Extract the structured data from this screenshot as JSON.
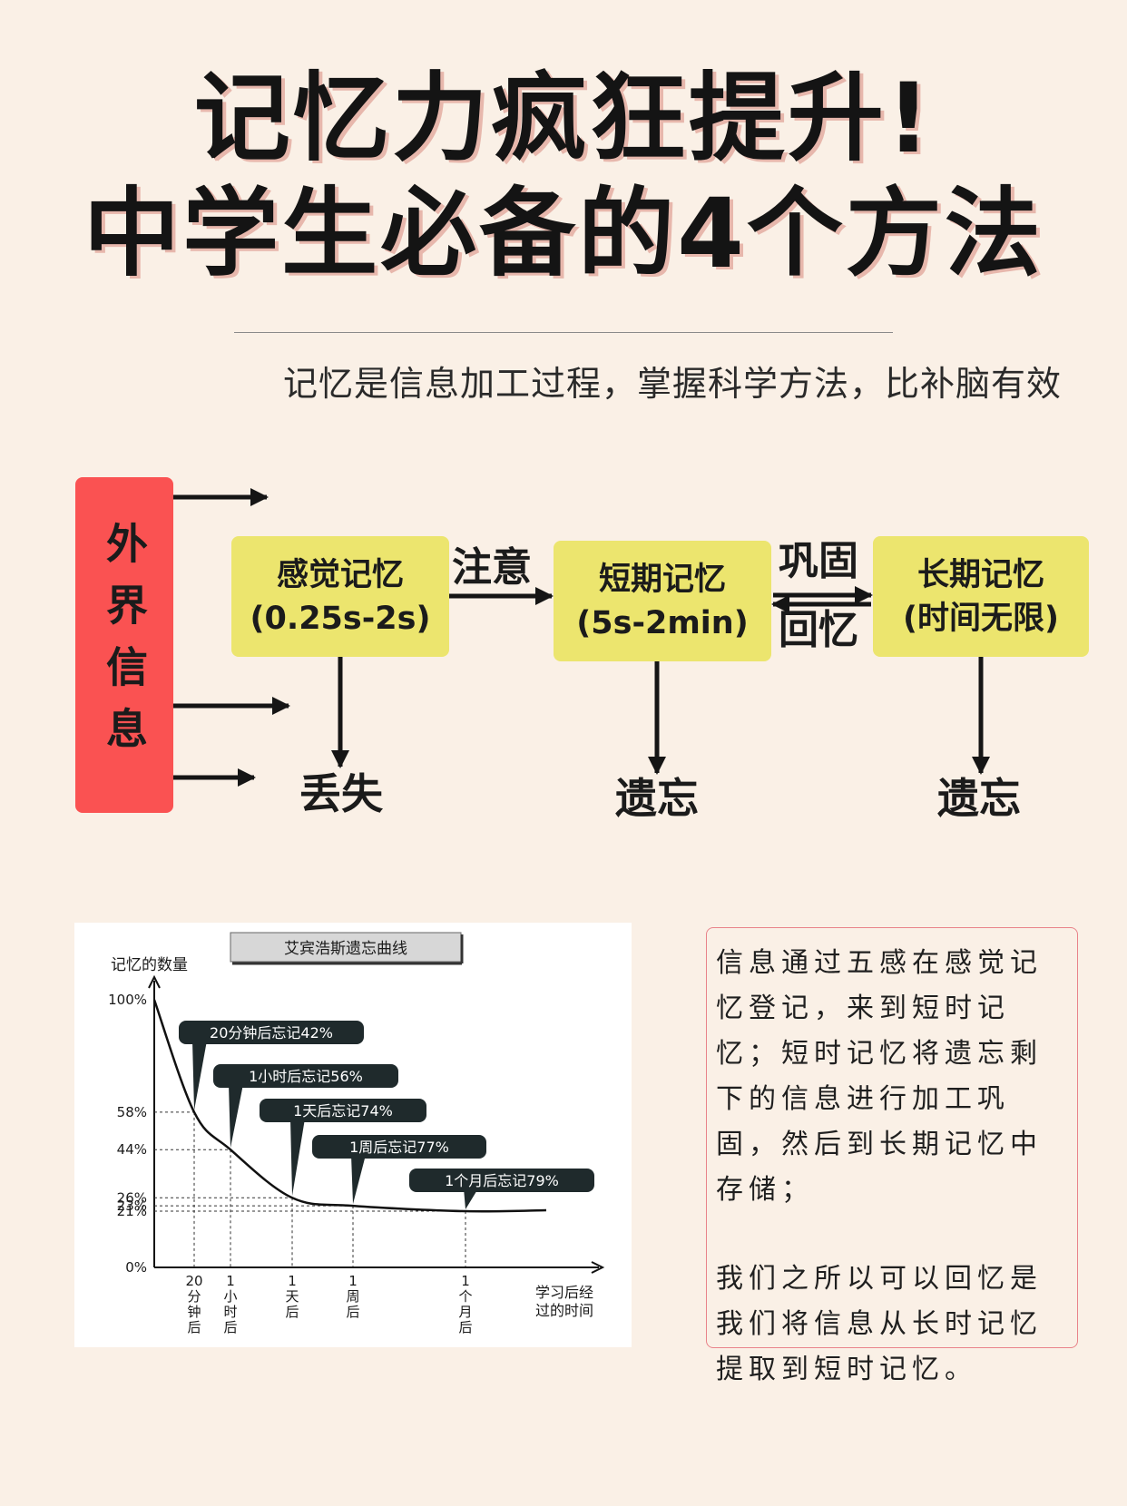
{
  "header": {
    "title_line1": "记忆力疯狂提升!",
    "title_line2": "中学生必备的4个方法",
    "subtitle": "记忆是信息加工过程，掌握科学方法，比补脑有效"
  },
  "flow": {
    "source": "外界信息",
    "stages": [
      {
        "name": "感觉记忆",
        "duration": "(0.25s-2s)"
      },
      {
        "name": "短期记忆",
        "duration": "(5s-2min)"
      },
      {
        "name": "长期记忆",
        "duration": "(时间无限)"
      }
    ],
    "edge_attention": "注意",
    "edge_consolidate": "巩固",
    "edge_recall": "回忆",
    "outcome_lost": "丢失",
    "outcome_forget": "遗忘"
  },
  "chart_data": {
    "type": "line",
    "title": "艾宾浩斯遗忘曲线",
    "ylabel": "记忆的数量",
    "xlabel": "学习后经过的时间",
    "y_ticks": [
      "100%",
      "58%",
      "44%",
      "26%",
      "23%",
      "21%",
      "0%"
    ],
    "x_ticks": [
      "20分钟后",
      "1小时后",
      "1天后",
      "1周后",
      "1个月后"
    ],
    "x": [
      "0",
      "20分钟后",
      "1小时后",
      "1天后",
      "1周后",
      "1个月后"
    ],
    "series": [
      {
        "values": [
          100,
          58,
          44,
          26,
          23,
          21
        ]
      }
    ],
    "annotations": [
      "20分钟后忘记42%",
      "1小时后忘记56%",
      "1天后忘记74%",
      "1周后忘记77%",
      "1个月后忘记79%"
    ],
    "ylim": [
      0,
      100
    ],
    "grid": false
  },
  "note": {
    "para1": "信息通过五感在感觉记忆登记，来到短时记忆；短时记忆将遗忘剩下的信息进行加工巩固，然后到长期记忆中存储；",
    "para2": "我们之所以可以回忆是我们将信息从长时记忆提取到短时记忆。"
  },
  "colors": {
    "background": "#faf0e6",
    "source_box": "#fa5252",
    "stage_box": "#ece56e",
    "note_border": "#e9838a"
  }
}
